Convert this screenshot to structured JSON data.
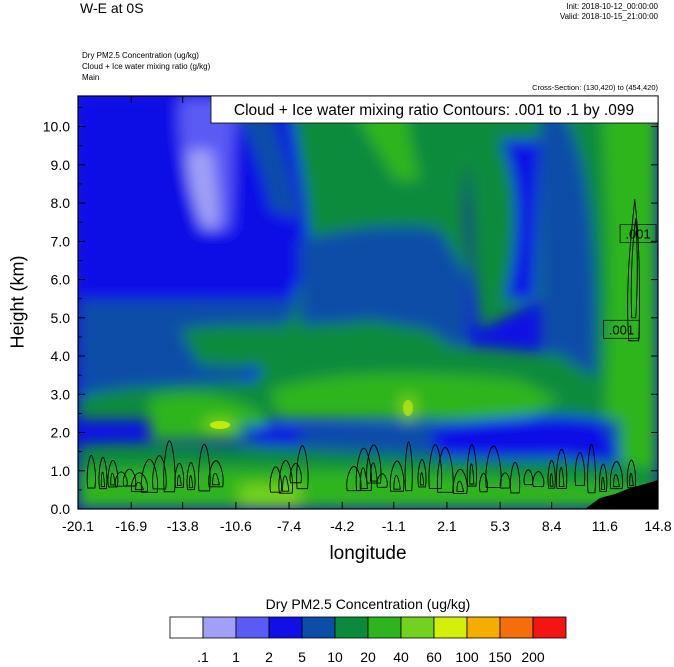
{
  "header": {
    "title": "W-E at 0S",
    "init": "Init: 2018-10-12_00:00:00",
    "valid": "Valid: 2018-10-15_21:00:00",
    "field1": "Dry PM2.5 Concentration   (ug/kg)",
    "field2": "Cloud + Ice water mixing ratio   (g/kg)",
    "field3": "Main",
    "cross_section": "Cross-Section: (130,420) to (454,420)"
  },
  "chart_data": {
    "type": "heatmap",
    "xlabel": "longitude",
    "ylabel": "Height (km)",
    "xlim": [
      -20.1,
      14.8
    ],
    "ylim": [
      0.0,
      10.8
    ],
    "x_ticks": [
      "-20.1",
      "-16.9",
      "-13.8",
      "-10.6",
      "-7.4",
      "-4.2",
      "-1.1",
      "2.1",
      "5.3",
      "8.4",
      "11.6",
      "14.8"
    ],
    "y_ticks": [
      "0.0",
      "1.0",
      "2.0",
      "3.0",
      "4.0",
      "5.0",
      "6.0",
      "7.0",
      "8.0",
      "9.0",
      "10.0"
    ],
    "contour_title": "Cloud + Ice water mixing ratio Contours: .001 to .1 by .099",
    "contour_labels": [
      {
        "text": ".001",
        "x": 13.6,
        "y": 7.2
      },
      {
        "text": ".001",
        "x": 12.6,
        "y": 4.7
      }
    ],
    "colorbar": {
      "title": "Dry PM2.5 Concentration  (ug/kg)",
      "levels": [
        ".1",
        "1",
        "2",
        "5",
        "10",
        "20",
        "40",
        "60",
        "100",
        "150",
        "200"
      ],
      "colors": [
        "#ffffff",
        "#a0a0f7",
        "#5a5af5",
        "#1010e6",
        "#0a4ea8",
        "#0a8b3c",
        "#2db51e",
        "#73d21e",
        "#d2f00a",
        "#f5ae00",
        "#f56e0a",
        "#f51414"
      ]
    }
  }
}
